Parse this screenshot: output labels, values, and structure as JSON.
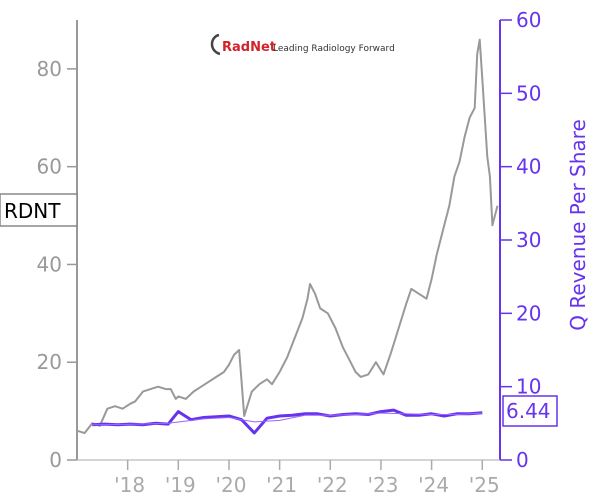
{
  "logo": {
    "brand": "RadNet",
    "tagline": "Leading Radiology Forward",
    "brand_color": "#d2232a"
  },
  "ticker_label": "RDNT",
  "last_value_label": "6.44",
  "colors": {
    "price_line": "#999999",
    "revenue_line": "#6633ee",
    "revenue_trend": "#9966ff",
    "left_axis": "#999999",
    "right_axis": "#6633ee"
  },
  "chart_data": {
    "type": "line",
    "ylabel_left": "",
    "ylabel_right": "Q Revenue Per Share",
    "ylim_left": [
      0,
      90
    ],
    "ylim_right": [
      0,
      60
    ],
    "xlim": [
      2017.0,
      2025.35
    ],
    "yticks_left": [
      0,
      20,
      40,
      60,
      80
    ],
    "yticks_right": [
      0,
      10,
      20,
      30,
      40,
      50,
      60
    ],
    "xticks": [
      {
        "value": 2018,
        "label": "'18"
      },
      {
        "value": 2019,
        "label": "'19"
      },
      {
        "value": 2020,
        "label": "'20"
      },
      {
        "value": 2021,
        "label": "'21"
      },
      {
        "value": 2022,
        "label": "'22"
      },
      {
        "value": 2023,
        "label": "'23"
      },
      {
        "value": 2024,
        "label": "'24"
      },
      {
        "value": 2025,
        "label": "'25"
      }
    ],
    "series": [
      {
        "name": "RDNT",
        "axis": "left",
        "x": [
          2017.0,
          2017.15,
          2017.3,
          2017.45,
          2017.6,
          2017.75,
          2017.9,
          2018.05,
          2018.15,
          2018.3,
          2018.45,
          2018.6,
          2018.75,
          2018.85,
          2018.95,
          2019.0,
          2019.15,
          2019.3,
          2019.45,
          2019.6,
          2019.75,
          2019.9,
          2020.0,
          2020.1,
          2020.2,
          2020.25,
          2020.3,
          2020.45,
          2020.6,
          2020.75,
          2020.85,
          2021.0,
          2021.15,
          2021.3,
          2021.45,
          2021.55,
          2021.6,
          2021.7,
          2021.8,
          2021.95,
          2022.1,
          2022.25,
          2022.4,
          2022.5,
          2022.6,
          2022.75,
          2022.9,
          2023.05,
          2023.2,
          2023.35,
          2023.5,
          2023.6,
          2023.75,
          2023.9,
          2024.0,
          2024.1,
          2024.2,
          2024.35,
          2024.45,
          2024.55,
          2024.65,
          2024.75,
          2024.8,
          2024.85,
          2024.9,
          2024.95,
          2025.0,
          2025.05,
          2025.1,
          2025.15,
          2025.2,
          2025.3
        ],
        "y": [
          6,
          5.5,
          7.5,
          7,
          10.5,
          11,
          10.5,
          11.5,
          12,
          14,
          14.5,
          15,
          14.5,
          14.5,
          12.5,
          13,
          12.5,
          14,
          15,
          16,
          17,
          18,
          19.5,
          21.5,
          22.5,
          16,
          9,
          14,
          15.5,
          16.5,
          15.5,
          18,
          21,
          25,
          29,
          33,
          36,
          34,
          31,
          30,
          27,
          23,
          20,
          18,
          17,
          17.5,
          20,
          17.5,
          22,
          27,
          32,
          35,
          34,
          33,
          37,
          42,
          46,
          52,
          58,
          61,
          66,
          70,
          71,
          72,
          83,
          86,
          78,
          70,
          62,
          58,
          48,
          52
        ]
      },
      {
        "name": "Q Revenue Per Share",
        "axis": "right",
        "x": [
          2017.3,
          2017.55,
          2017.8,
          2018.05,
          2018.3,
          2018.55,
          2018.8,
          2019.0,
          2019.25,
          2019.5,
          2019.75,
          2020.0,
          2020.25,
          2020.5,
          2020.75,
          2021.0,
          2021.25,
          2021.5,
          2021.75,
          2022.0,
          2022.25,
          2022.5,
          2022.75,
          2023.0,
          2023.25,
          2023.5,
          2023.75,
          2024.0,
          2024.25,
          2024.5,
          2024.75,
          2025.0
        ],
        "y": [
          4.8,
          4.9,
          4.8,
          4.9,
          4.8,
          5.0,
          4.9,
          6.6,
          5.5,
          5.8,
          5.9,
          6.0,
          5.5,
          3.7,
          5.7,
          6.0,
          6.1,
          6.3,
          6.3,
          6.0,
          6.2,
          6.3,
          6.2,
          6.6,
          6.8,
          6.1,
          6.1,
          6.3,
          6.0,
          6.3,
          6.3,
          6.44
        ]
      },
      {
        "name": "",
        "axis": "right",
        "style": "trend",
        "x": [
          2017.3,
          2018.0,
          2018.8,
          2019.5,
          2020.0,
          2020.5,
          2021.0,
          2021.5,
          2022.0,
          2022.5,
          2023.0,
          2023.5,
          2024.0,
          2024.5,
          2025.0
        ],
        "y": [
          4.8,
          4.85,
          5.0,
          5.6,
          5.8,
          5.2,
          5.4,
          6.1,
          6.1,
          6.2,
          6.4,
          6.3,
          6.2,
          6.2,
          6.4
        ]
      }
    ]
  }
}
